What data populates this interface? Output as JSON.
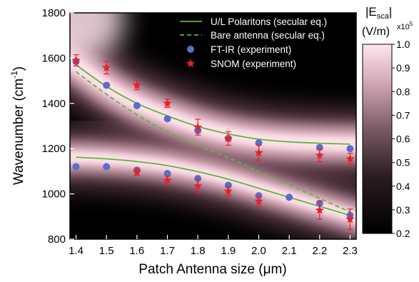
{
  "chart_data": {
    "type": "scatter",
    "xlabel": "Patch Antenna size (μm)",
    "ylabel_main": "Wavenumber (cm",
    "ylabel_sup": "-1",
    "ylabel_close": ")",
    "xlim": [
      1.38,
      2.32
    ],
    "ylim": [
      800,
      1800
    ],
    "x_ticks": [
      1.4,
      1.5,
      1.6,
      1.7,
      1.8,
      1.9,
      2.0,
      2.1,
      2.2,
      2.3
    ],
    "y_ticks": [
      800,
      1000,
      1200,
      1400,
      1600,
      1800
    ],
    "legend": {
      "placement": "top-right",
      "entries": [
        {
          "label": "U/L Polaritons (secular eq.)",
          "style": "solid-line",
          "color": "#5cb83a"
        },
        {
          "label": "Bare antenna (secular eq.)",
          "style": "dashed-line",
          "color": "#5cb83a"
        },
        {
          "label": "FT-IR (experiment)",
          "style": "circle",
          "color": "#5a6ec8"
        },
        {
          "label": "SNOM (experiment)",
          "style": "star",
          "color": "#e8202a"
        }
      ]
    },
    "series": [
      {
        "name": "U/L Polaritons (secular eq.)",
        "role": "upper",
        "x": [
          1.4,
          1.5,
          1.6,
          1.7,
          1.8,
          1.9,
          2.0,
          2.1,
          2.2,
          2.3
        ],
        "y": [
          1570,
          1475,
          1400,
          1345,
          1298,
          1265,
          1242,
          1230,
          1224,
          1220
        ]
      },
      {
        "name": "U/L Polaritons (secular eq.)",
        "role": "lower",
        "x": [
          1.4,
          1.5,
          1.6,
          1.7,
          1.8,
          1.9,
          2.0,
          2.1,
          2.2,
          2.3
        ],
        "y": [
          1162,
          1155,
          1143,
          1125,
          1098,
          1065,
          1025,
          985,
          945,
          905
        ]
      },
      {
        "name": "Bare antenna (secular eq.)",
        "x": [
          1.4,
          1.5,
          1.6,
          1.7,
          1.8,
          1.9,
          2.0,
          2.1,
          2.2,
          2.3
        ],
        "y": [
          1540,
          1440,
          1350,
          1275,
          1215,
          1160,
          1100,
          1040,
          980,
          920
        ]
      },
      {
        "name": "FT-IR (experiment)",
        "x": [
          1.4,
          1.4,
          1.5,
          1.5,
          1.6,
          1.6,
          1.7,
          1.7,
          1.8,
          1.8,
          1.9,
          1.9,
          2.0,
          2.0,
          2.1,
          2.2,
          2.2,
          2.3,
          2.3
        ],
        "y": [
          1585,
          1120,
          1480,
          1120,
          1390,
          1105,
          1332,
          1090,
          1280,
          1068,
          1245,
          1038,
          1225,
          992,
          985,
          1205,
          958,
          1200,
          905
        ]
      },
      {
        "name": "SNOM (experiment)",
        "x": [
          1.4,
          1.5,
          1.6,
          1.6,
          1.7,
          1.7,
          1.8,
          1.8,
          1.9,
          1.9,
          2.0,
          2.0,
          2.2,
          2.2,
          2.3,
          2.3
        ],
        "y": [
          1590,
          1558,
          1480,
          1097,
          1400,
          1060,
          1295,
          1035,
          1245,
          1012,
          1182,
          968,
          1170,
          928,
          1155,
          888
        ],
        "yerr": [
          25,
          28,
          20,
          15,
          18,
          18,
          35,
          30,
          30,
          20,
          35,
          22,
          28,
          40,
          25,
          45
        ]
      }
    ],
    "colorbar": {
      "title_main": "|E",
      "title_sub": "sca",
      "title_close": "|",
      "unit": "(V/m)",
      "multiplier_base": "x10",
      "multiplier_exp": "5",
      "range": [
        0.2,
        1.0
      ],
      "ticks": [
        0.2,
        0.3,
        0.4,
        0.5,
        0.6,
        0.7,
        0.8,
        0.9,
        1.0
      ],
      "tick_labels": [
        "0.2",
        "0.3",
        "0.4",
        "0.5",
        "0.6",
        "0.7",
        "0.8",
        "0.9",
        "1.0"
      ],
      "colormap": [
        "#000000",
        "#ffe6ee"
      ]
    },
    "colors": {
      "upper_line": "#5cb83a",
      "lower_line": "#5cb83a",
      "ftir": "#5a6ec8",
      "snom": "#e8202a",
      "background": "#000000",
      "ridge": "#ffd8e4"
    }
  }
}
